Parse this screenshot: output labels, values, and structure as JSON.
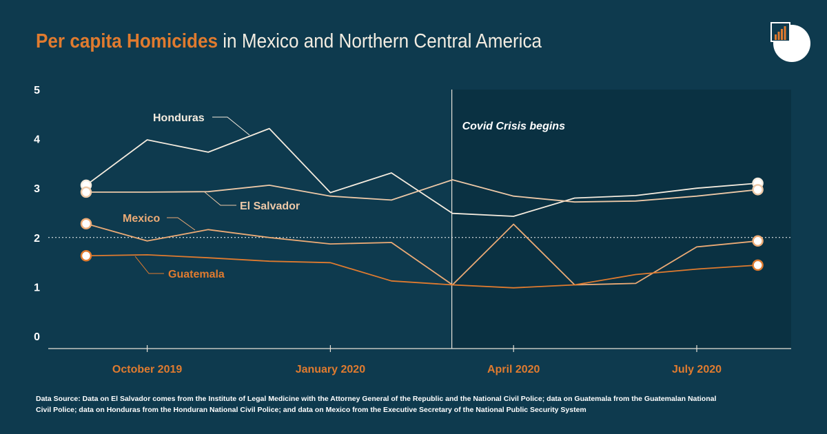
{
  "header": {
    "title_highlight": "Per capita Homicides",
    "title_rest": " in Mexico and Northern Central America"
  },
  "logo": {
    "icon": "bar-chart-logo-icon"
  },
  "footer": {
    "source": "Data Source: Data on El Salvador comes from the Institute of Legal Medicine with the Attorney General of the Republic and the National Civil Police; data on Guatemala from the Guatemalan National Civil Police; data on Honduras from the Honduran National Civil Police; and data on Mexico from the Executive Secretary of the National Public Security System"
  },
  "colors": {
    "background": "#0e3a4e",
    "shaded": "#0a3142",
    "honduras": "#f5ecdf",
    "el_salvador": "#edc9a8",
    "mexico": "#ecab76",
    "guatemala": "#e07b2f",
    "accent": "#e07b2f"
  },
  "chart_data": {
    "type": "line",
    "x": [
      "2019-09",
      "2019-10",
      "2019-11",
      "2019-12",
      "2020-01",
      "2020-02",
      "2020-03",
      "2020-04",
      "2020-05",
      "2020-06",
      "2020-07",
      "2020-08"
    ],
    "x_tick_labels": [
      {
        "x": "2019-10",
        "label": "October 2019"
      },
      {
        "x": "2020-01",
        "label": "January 2020"
      },
      {
        "x": "2020-04",
        "label": "April 2020"
      },
      {
        "x": "2020-07",
        "label": "July 2020"
      }
    ],
    "ylim": [
      0,
      5
    ],
    "y_ticks": [
      0,
      1,
      2,
      3,
      4,
      5
    ],
    "reference_line": {
      "y": 2,
      "style": "dotted"
    },
    "shaded_region": {
      "from": "2020-03",
      "label": "Covid Crisis begins"
    },
    "series": [
      {
        "name": "Honduras",
        "values": [
          3.06,
          3.98,
          3.73,
          4.21,
          2.91,
          3.31,
          2.49,
          2.43,
          2.8,
          2.85,
          3.0,
          3.1
        ]
      },
      {
        "name": "El Salvador",
        "values": [
          2.92,
          2.92,
          2.93,
          3.06,
          2.84,
          2.76,
          3.17,
          2.84,
          2.72,
          2.74,
          2.84,
          2.97
        ]
      },
      {
        "name": "Mexico",
        "values": [
          2.28,
          1.93,
          2.16,
          2.0,
          1.87,
          1.9,
          1.04,
          2.27,
          1.04,
          1.07,
          1.81,
          1.93
        ]
      },
      {
        "name": "Guatemala",
        "values": [
          1.63,
          1.65,
          1.59,
          1.52,
          1.49,
          1.12,
          1.04,
          0.98,
          1.04,
          1.25,
          1.36,
          1.44
        ]
      }
    ]
  }
}
